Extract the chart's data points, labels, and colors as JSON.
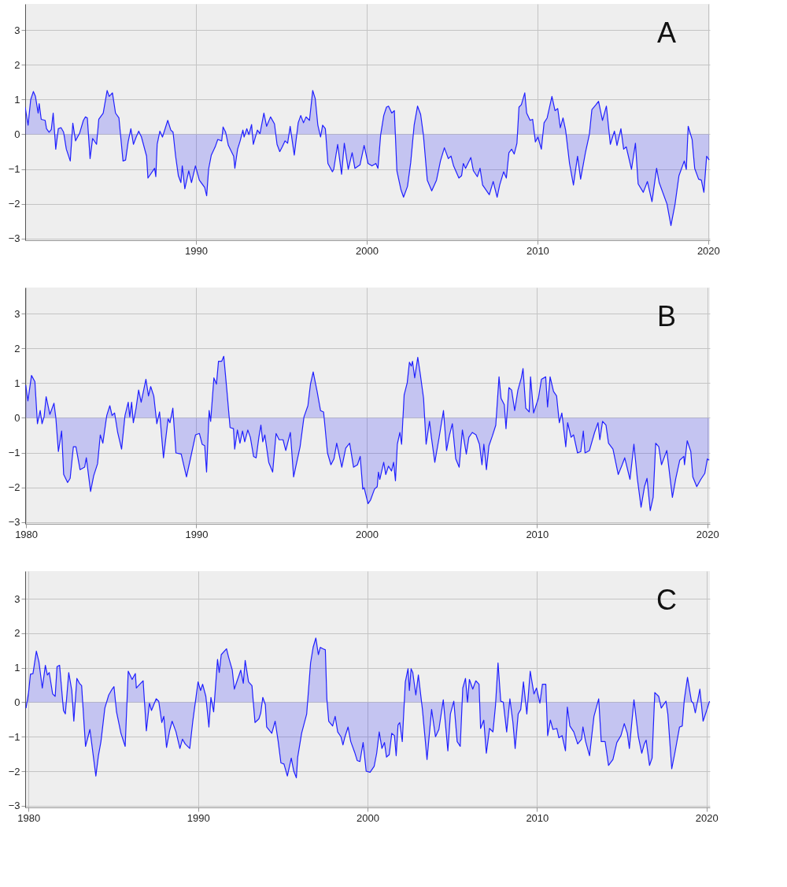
{
  "chart_data": [
    {
      "type": "area",
      "color": "#2020ff",
      "grid": true,
      "annotations": [
        "A"
      ],
      "xlim": [
        1980,
        2020.1
      ],
      "xticks": [
        1990,
        2000,
        2010,
        2020
      ],
      "ylim": [
        -3.05,
        3.75
      ],
      "yticks": [
        -3,
        -2,
        -1,
        0,
        1,
        2,
        3
      ],
      "x": [
        1980.0,
        1980.17,
        1980.32,
        1980.48,
        1980.6,
        1980.76,
        1980.82,
        1980.94,
        1981.17,
        1981.25,
        1981.4,
        1981.53,
        1981.64,
        1981.79,
        1981.94,
        1982.1,
        1982.25,
        1982.41,
        1982.64,
        1982.79,
        1982.95,
        1983.18,
        1983.41,
        1983.53,
        1983.64,
        1983.8,
        1983.95,
        1984.18,
        1984.31,
        1984.57,
        1984.8,
        1984.92,
        1985.11,
        1985.29,
        1985.49,
        1985.73,
        1985.88,
        1986.03,
        1986.19,
        1986.34,
        1986.5,
        1986.65,
        1986.81,
        1987.11,
        1987.19,
        1987.58,
        1987.65,
        1987.73,
        1987.89,
        1988.04,
        1988.35,
        1988.53,
        1988.66,
        1988.81,
        1988.97,
        1989.12,
        1989.2,
        1989.35,
        1989.58,
        1989.74,
        1989.97,
        1990.2,
        1990.51,
        1990.63,
        1990.74,
        1990.9,
        1991.13,
        1991.28,
        1991.51,
        1991.59,
        1991.74,
        1991.9,
        1992.21,
        1992.28,
        1992.44,
        1992.59,
        1992.75,
        1992.82,
        1992.98,
        1993.1,
        1993.26,
        1993.36,
        1993.6,
        1993.75,
        1993.98,
        1994.14,
        1994.37,
        1994.6,
        1994.75,
        1994.91,
        1995.06,
        1995.22,
        1995.37,
        1995.52,
        1995.76,
        1995.99,
        1996.14,
        1996.3,
        1996.45,
        1996.65,
        1996.84,
        1996.99,
        1997.14,
        1997.3,
        1997.42,
        1997.58,
        1997.73,
        1997.99,
        1998.07,
        1998.3,
        1998.53,
        1998.69,
        1998.92,
        1999.15,
        1999.31,
        1999.61,
        1999.85,
        2000.08,
        2000.31,
        2000.54,
        2000.66,
        2000.82,
        2001.0,
        2001.16,
        2001.28,
        2001.47,
        2001.62,
        2001.77,
        2002.01,
        2002.16,
        2002.39,
        2002.58,
        2002.78,
        2002.98,
        2003.16,
        2003.32,
        2003.55,
        2003.81,
        2004.09,
        2004.32,
        2004.55,
        2004.78,
        2004.94,
        2005.09,
        2005.4,
        2005.56,
        2005.66,
        2005.79,
        2006.1,
        2006.25,
        2006.48,
        2006.64,
        2006.79,
        2007.18,
        2007.41,
        2007.64,
        2007.79,
        2008.02,
        2008.18,
        2008.33,
        2008.49,
        2008.64,
        2008.8,
        2008.92,
        2009.06,
        2009.26,
        2009.37,
        2009.57,
        2009.72,
        2009.88,
        2010.03,
        2010.23,
        2010.39,
        2010.57,
        2010.85,
        2011.03,
        2011.19,
        2011.34,
        2011.5,
        2011.65,
        2011.88,
        2012.11,
        2012.35,
        2012.53,
        2012.81,
        2013.04,
        2013.19,
        2013.43,
        2013.58,
        2013.81,
        2014.04,
        2014.27,
        2014.51,
        2014.66,
        2014.89,
        2015.05,
        2015.2,
        2015.51,
        2015.74,
        2015.9,
        2016.2,
        2016.44,
        2016.71,
        2016.98,
        2017.13,
        2017.59,
        2017.82,
        2018.06,
        2018.29,
        2018.6,
        2018.72,
        2018.83,
        2019.06,
        2019.21,
        2019.44,
        2019.6,
        2019.75,
        2019.91,
        2020.06
      ],
      "values": [
        0.78,
        0.26,
        0.99,
        1.23,
        1.09,
        0.61,
        0.88,
        0.43,
        0.4,
        0.16,
        0.06,
        0.14,
        0.61,
        -0.43,
        0.16,
        0.19,
        0.06,
        -0.43,
        -0.77,
        0.32,
        -0.19,
        0.02,
        0.4,
        0.5,
        0.47,
        -0.7,
        -0.12,
        -0.29,
        0.43,
        0.61,
        1.26,
        1.09,
        1.19,
        0.61,
        0.47,
        -0.77,
        -0.74,
        -0.22,
        0.16,
        -0.29,
        -0.08,
        0.09,
        -0.08,
        -0.63,
        -1.26,
        -0.98,
        -1.22,
        -0.29,
        0.09,
        -0.08,
        0.4,
        0.12,
        0.06,
        -0.63,
        -1.19,
        -1.39,
        -0.91,
        -1.57,
        -1.05,
        -1.39,
        -0.91,
        -1.32,
        -1.53,
        -1.77,
        -1.01,
        -0.6,
        -0.36,
        -0.15,
        -0.19,
        0.21,
        0.06,
        -0.32,
        -0.63,
        -0.98,
        -0.43,
        -0.19,
        0.12,
        -0.08,
        0.16,
        -0.01,
        0.28,
        -0.29,
        0.12,
        0.02,
        0.61,
        0.23,
        0.5,
        0.3,
        -0.29,
        -0.5,
        -0.36,
        -0.19,
        -0.26,
        0.23,
        -0.6,
        0.33,
        0.54,
        0.33,
        0.5,
        0.4,
        1.26,
        1.02,
        0.26,
        -0.08,
        0.26,
        0.16,
        -0.84,
        -1.08,
        -1.01,
        -0.29,
        -1.15,
        -0.26,
        -1.01,
        -0.53,
        -0.98,
        -0.88,
        -0.32,
        -0.84,
        -0.91,
        -0.84,
        -0.98,
        -0.01,
        0.54,
        0.78,
        0.81,
        0.61,
        0.68,
        -1.05,
        -1.6,
        -1.81,
        -1.5,
        -0.81,
        0.26,
        0.81,
        0.57,
        -0.01,
        -1.32,
        -1.63,
        -1.32,
        -0.77,
        -0.39,
        -0.7,
        -0.63,
        -0.91,
        -1.26,
        -1.19,
        -0.84,
        -0.98,
        -0.67,
        -1.05,
        -1.22,
        -0.98,
        -1.46,
        -1.74,
        -1.36,
        -1.81,
        -1.46,
        -1.08,
        -1.26,
        -0.53,
        -0.43,
        -0.57,
        -0.26,
        0.78,
        0.85,
        1.19,
        0.61,
        0.4,
        0.43,
        -0.22,
        -0.08,
        -0.43,
        0.33,
        0.47,
        1.09,
        0.68,
        0.74,
        0.19,
        0.47,
        0.12,
        -0.84,
        -1.46,
        -0.63,
        -1.29,
        -0.53,
        -0.01,
        0.71,
        0.85,
        0.95,
        0.4,
        0.81,
        -0.29,
        0.09,
        -0.32,
        0.16,
        -0.43,
        -0.36,
        -1.01,
        -0.26,
        -1.43,
        -1.67,
        -1.36,
        -1.94,
        -0.98,
        -1.39,
        -2.01,
        -2.63,
        -2.01,
        -1.19,
        -0.77,
        -1.01,
        0.23,
        -0.15,
        -0.98,
        -1.29,
        -1.32,
        -1.67,
        -0.63,
        -0.74
      ]
    },
    {
      "type": "area",
      "color": "#2020ff",
      "grid": true,
      "annotations": [
        "B"
      ],
      "xlim": [
        1979.95,
        2020.15
      ],
      "xticks": [
        1980,
        1990,
        2000,
        2010,
        2020
      ],
      "ylim": [
        -3.05,
        3.75
      ],
      "yticks": [
        -3,
        -2,
        -1,
        0,
        1,
        2,
        3
      ],
      "x": [
        1979.98,
        1980.11,
        1980.32,
        1980.52,
        1980.67,
        1980.83,
        1980.94,
        1981.06,
        1981.18,
        1981.4,
        1981.64,
        1981.75,
        1981.9,
        1982.09,
        1982.21,
        1982.44,
        1982.59,
        1982.78,
        1982.93,
        1983.17,
        1983.44,
        1983.54,
        1983.79,
        1983.97,
        1984.2,
        1984.36,
        1984.51,
        1984.74,
        1984.92,
        1985.05,
        1985.2,
        1985.38,
        1985.61,
        1985.81,
        1986.0,
        1986.09,
        1986.2,
        1986.3,
        1986.46,
        1986.61,
        1986.76,
        1987.04,
        1987.19,
        1987.32,
        1987.5,
        1987.68,
        1987.84,
        1988.07,
        1988.34,
        1988.45,
        1988.62,
        1988.8,
        1989.11,
        1989.42,
        1989.65,
        1989.95,
        1990.18,
        1990.34,
        1990.49,
        1990.6,
        1990.75,
        1990.84,
        1991.03,
        1991.18,
        1991.3,
        1991.49,
        1991.61,
        1991.79,
        1991.98,
        1992.18,
        1992.25,
        1992.41,
        1992.56,
        1992.71,
        1992.84,
        1993.02,
        1993.17,
        1993.36,
        1993.51,
        1993.67,
        1993.79,
        1993.9,
        1994.02,
        1994.25,
        1994.48,
        1994.68,
        1994.86,
        1995.09,
        1995.25,
        1995.52,
        1995.71,
        1996.09,
        1996.32,
        1996.55,
        1996.7,
        1996.86,
        1997.09,
        1997.29,
        1997.47,
        1997.7,
        1997.9,
        1998.08,
        1998.24,
        1998.54,
        1998.77,
        1999.0,
        1999.23,
        1999.46,
        1999.62,
        1999.77,
        1999.85,
        2000.08,
        2000.23,
        2000.46,
        2000.62,
        2000.69,
        2000.77,
        2001.0,
        2001.12,
        2001.28,
        2001.46,
        2001.58,
        2001.69,
        2001.8,
        2001.95,
        2002.05,
        2002.2,
        2002.38,
        2002.51,
        2002.62,
        2002.69,
        2002.82,
        2003.0,
        2003.15,
        2003.34,
        2003.49,
        2003.69,
        2003.8,
        2004.0,
        2004.23,
        2004.51,
        2004.69,
        2004.85,
        2005.03,
        2005.23,
        2005.43,
        2005.62,
        2005.85,
        2006.0,
        2006.2,
        2006.42,
        2006.62,
        2006.77,
        2006.88,
        2007.03,
        2007.18,
        2007.38,
        2007.58,
        2007.77,
        2007.89,
        2008.08,
        2008.18,
        2008.35,
        2008.51,
        2008.69,
        2008.88,
        2009.08,
        2009.18,
        2009.34,
        2009.54,
        2009.62,
        2009.8,
        2010.08,
        2010.26,
        2010.51,
        2010.62,
        2010.77,
        2010.97,
        2011.15,
        2011.31,
        2011.46,
        2011.69,
        2011.8,
        2012.0,
        2012.15,
        2012.38,
        2012.57,
        2012.72,
        2012.82,
        2013.08,
        2013.38,
        2013.58,
        2013.69,
        2013.85,
        2014.05,
        2014.2,
        2014.46,
        2014.77,
        2015.0,
        2015.15,
        2015.46,
        2015.69,
        2015.89,
        2016.11,
        2016.31,
        2016.46,
        2016.65,
        2016.82,
        2016.97,
        2017.15,
        2017.31,
        2017.62,
        2017.95,
        2018.15,
        2018.38,
        2018.62,
        2018.66,
        2018.82,
        2019.03,
        2019.15,
        2019.38,
        2019.62,
        2019.85,
        2020.0,
        2020.11
      ],
      "values": [
        0.94,
        0.49,
        1.22,
        1.04,
        -0.17,
        0.21,
        -0.17,
        0.03,
        0.61,
        0.1,
        0.42,
        0,
        -0.97,
        -0.38,
        -1.63,
        -1.86,
        -1.74,
        -0.83,
        -0.83,
        -1.49,
        -1.42,
        -1.15,
        -2.12,
        -1.67,
        -1.32,
        -0.49,
        -0.73,
        0.07,
        0.35,
        0.07,
        0.14,
        -0.42,
        -0.9,
        0.07,
        0.45,
        0.03,
        0.45,
        -0.14,
        0.28,
        0.8,
        0.45,
        1.11,
        0.63,
        0.9,
        0.63,
        -0.17,
        0.17,
        -1.15,
        -0.03,
        -0.14,
        0.28,
        -1.01,
        -1.04,
        -1.7,
        -1.18,
        -0.49,
        -0.45,
        -0.76,
        -0.8,
        -1.56,
        0.21,
        -0.1,
        1.15,
        0.97,
        1.63,
        1.63,
        1.77,
        0.8,
        -0.28,
        -0.31,
        -0.9,
        -0.35,
        -0.73,
        -0.38,
        -0.69,
        -0.35,
        -0.56,
        -1.11,
        -1.15,
        -0.56,
        -0.21,
        -0.69,
        -0.49,
        -1.28,
        -1.56,
        -0.45,
        -0.63,
        -0.63,
        -0.94,
        -0.42,
        -1.7,
        -0.83,
        0.03,
        0.35,
        0.97,
        1.32,
        0.76,
        0.21,
        0.17,
        -1.01,
        -1.35,
        -1.18,
        -0.73,
        -1.42,
        -0.87,
        -0.73,
        -1.42,
        -1.35,
        -1.11,
        -2.05,
        -2.01,
        -2.47,
        -2.36,
        -2.05,
        -1.98,
        -1.56,
        -1.77,
        -1.28,
        -1.63,
        -1.39,
        -1.53,
        -1.28,
        -1.81,
        -0.76,
        -0.42,
        -0.76,
        0.66,
        1.01,
        1.6,
        1.49,
        1.63,
        1.15,
        1.74,
        1.25,
        0.56,
        -0.76,
        -0.1,
        -0.56,
        -1.28,
        -0.63,
        0.21,
        -0.94,
        -0.52,
        -0.17,
        -1.18,
        -1.42,
        -0.35,
        -1.04,
        -0.56,
        -0.42,
        -0.49,
        -0.76,
        -1.35,
        -0.76,
        -1.49,
        -0.8,
        -0.52,
        -0.21,
        1.18,
        0.56,
        0.38,
        -0.31,
        0.87,
        0.8,
        0.21,
        0.8,
        1.15,
        1.42,
        0.28,
        0.17,
        1.18,
        0.14,
        0.56,
        1.11,
        1.18,
        0.31,
        1.18,
        0.76,
        0.63,
        -0.14,
        0.14,
        -0.83,
        -0.14,
        -0.56,
        -0.49,
        -1.01,
        -0.97,
        -0.38,
        -1.01,
        -0.94,
        -0.42,
        -0.14,
        -0.63,
        -0.1,
        -0.21,
        -0.73,
        -0.9,
        -1.63,
        -1.35,
        -1.15,
        -1.77,
        -0.76,
        -1.74,
        -2.57,
        -1.98,
        -1.74,
        -2.67,
        -2.29,
        -0.73,
        -0.83,
        -1.35,
        -0.94,
        -2.29,
        -1.74,
        -1.22,
        -1.11,
        -1.35,
        -0.66,
        -0.97,
        -1.7,
        -1.98,
        -1.77,
        -1.6,
        -1.18,
        -1.22
      ]
    },
    {
      "type": "area",
      "color": "#2020ff",
      "grid": true,
      "annotations": [
        "C"
      ],
      "xlim": [
        1979.8,
        2020.2
      ],
      "xticks": [
        1980,
        1990,
        2000,
        2010,
        2020
      ],
      "ylim": [
        -3.05,
        3.8
      ],
      "yticks": [
        -3,
        -2,
        -1,
        0,
        1,
        2,
        3
      ],
      "x": [
        1979.85,
        1980.0,
        1980.11,
        1980.26,
        1980.46,
        1980.61,
        1980.81,
        1980.99,
        1981.11,
        1981.22,
        1981.42,
        1981.57,
        1981.68,
        1981.83,
        1982.06,
        1982.17,
        1982.37,
        1982.55,
        1982.67,
        1982.85,
        1983.0,
        1983.13,
        1983.36,
        1983.62,
        1983.97,
        1984.12,
        1984.27,
        1984.5,
        1984.73,
        1984.93,
        1985.04,
        1985.19,
        1985.45,
        1985.7,
        1985.88,
        1986.11,
        1986.3,
        1986.36,
        1986.56,
        1986.76,
        1986.95,
        1987.13,
        1987.25,
        1987.53,
        1987.68,
        1987.86,
        1987.98,
        1988.14,
        1988.32,
        1988.47,
        1988.7,
        1988.93,
        1989.08,
        1989.24,
        1989.51,
        1989.69,
        1990.0,
        1990.15,
        1990.27,
        1990.46,
        1990.64,
        1990.76,
        1990.92,
        1991.15,
        1991.25,
        1991.37,
        1991.68,
        1991.8,
        1992.02,
        1992.14,
        1992.52,
        1992.67,
        1992.78,
        1992.98,
        1993.18,
        1993.36,
        1993.59,
        1993.7,
        1993.82,
        1993.97,
        1994.05,
        1994.35,
        1994.55,
        1994.73,
        1994.89,
        1995.07,
        1995.27,
        1995.5,
        1995.65,
        1995.8,
        1995.88,
        1996.11,
        1996.41,
        1996.64,
        1996.79,
        1996.95,
        1997.1,
        1997.21,
        1997.36,
        1997.51,
        1997.6,
        1997.71,
        1997.94,
        1998.09,
        1998.24,
        1998.43,
        1998.55,
        1998.67,
        1998.85,
        1999.01,
        1999.24,
        1999.39,
        1999.55,
        1999.74,
        1999.92,
        2000.15,
        2000.39,
        2000.54,
        2000.69,
        2000.85,
        2001.0,
        2001.12,
        2001.28,
        2001.43,
        2001.59,
        2001.69,
        2001.8,
        2001.9,
        2002.05,
        2002.23,
        2002.39,
        2002.47,
        2002.57,
        2002.67,
        2002.85,
        2003.0,
        2003.24,
        2003.51,
        2003.78,
        2004.01,
        2004.21,
        2004.47,
        2004.74,
        2004.89,
        2005.09,
        2005.29,
        2005.47,
        2005.62,
        2005.78,
        2005.9,
        2006.01,
        2006.21,
        2006.39,
        2006.58,
        2006.67,
        2006.86,
        2007.01,
        2007.2,
        2007.4,
        2007.55,
        2007.7,
        2007.86,
        2008.01,
        2008.21,
        2008.4,
        2008.58,
        2008.71,
        2008.89,
        2009.04,
        2009.2,
        2009.4,
        2009.6,
        2009.82,
        2009.97,
        2010.17,
        2010.32,
        2010.52,
        2010.63,
        2010.79,
        2010.94,
        2011.17,
        2011.29,
        2011.48,
        2011.68,
        2011.79,
        2011.94,
        2012.17,
        2012.4,
        2012.63,
        2012.71,
        2012.87,
        2013.1,
        2013.36,
        2013.64,
        2013.79,
        2014.02,
        2014.22,
        2014.48,
        2014.71,
        2014.95,
        2015.15,
        2015.33,
        2015.45,
        2015.72,
        2015.98,
        2016.18,
        2016.33,
        2016.44,
        2016.64,
        2016.79,
        2016.95,
        2017.18,
        2017.33,
        2017.61,
        2017.72,
        2017.95,
        2018.13,
        2018.41,
        2018.57,
        2018.69,
        2018.88,
        2019.11,
        2019.22,
        2019.34,
        2019.61,
        2019.8,
        2020.03,
        2020.18
      ],
      "values": [
        -0.17,
        0.28,
        0.81,
        0.83,
        1.48,
        1.17,
        0.41,
        1.07,
        0.79,
        0.86,
        0.24,
        0.17,
        1.03,
        1.07,
        -0.24,
        -0.34,
        0.86,
        0.34,
        -0.55,
        0.69,
        0.55,
        0.48,
        -1.28,
        -0.79,
        -2.14,
        -1.55,
        -1.14,
        -0.17,
        0.21,
        0.38,
        0.45,
        -0.28,
        -0.9,
        -1.28,
        0.9,
        0.66,
        0.83,
        0.41,
        0.52,
        0.62,
        -0.83,
        -0.03,
        -0.24,
        0.1,
        0.03,
        -0.59,
        -0.41,
        -1.31,
        -0.83,
        -0.55,
        -0.86,
        -1.34,
        -1.07,
        -1.21,
        -1.34,
        -0.55,
        0.59,
        0.34,
        0.52,
        0.17,
        -0.72,
        0.14,
        -0.28,
        1.24,
        0.86,
        1.38,
        1.55,
        1.31,
        0.93,
        0.38,
        0.93,
        0.55,
        1.21,
        0.59,
        0.48,
        -0.59,
        -0.48,
        -0.31,
        0.14,
        -0.07,
        -0.72,
        -0.9,
        -0.55,
        -1.14,
        -1.76,
        -1.79,
        -2.14,
        -1.62,
        -2.0,
        -2.19,
        -1.59,
        -0.9,
        -0.34,
        1.14,
        1.59,
        1.86,
        1.38,
        1.59,
        1.55,
        1.52,
        0.1,
        -0.55,
        -0.69,
        -0.41,
        -0.86,
        -1.0,
        -1.24,
        -1.0,
        -0.72,
        -1.14,
        -1.45,
        -1.69,
        -1.72,
        -1.17,
        -2.0,
        -2.03,
        -1.86,
        -1.48,
        -0.86,
        -1.34,
        -1.17,
        -1.59,
        -1.52,
        -0.9,
        -0.97,
        -1.55,
        -0.66,
        -0.59,
        -1.14,
        0.59,
        0.97,
        0.34,
        0.97,
        0.86,
        0.21,
        0.79,
        -0.21,
        -1.66,
        -0.21,
        -1.0,
        -0.79,
        0.07,
        -1.41,
        -0.34,
        0.03,
        -1.14,
        -1.28,
        0.41,
        0.69,
        0,
        0.66,
        0.38,
        0.62,
        0.52,
        -0.76,
        -0.52,
        -1.48,
        -0.76,
        -0.86,
        -0.1,
        1.14,
        0.03,
        0,
        -0.86,
        0.1,
        -0.59,
        -1.34,
        -0.34,
        -0.21,
        0.59,
        -0.34,
        0.9,
        0.24,
        0.41,
        -0.03,
        0.52,
        0.52,
        -0.97,
        -0.52,
        -0.79,
        -0.76,
        -1.03,
        -0.97,
        -1.41,
        -0.14,
        -0.69,
        -0.86,
        -1.21,
        -1.07,
        -0.72,
        -1.14,
        -1.55,
        -0.41,
        0.1,
        -1.14,
        -1.14,
        -1.83,
        -1.66,
        -1.17,
        -0.97,
        -0.62,
        -0.9,
        -1.34,
        0.07,
        -1.0,
        -1.48,
        -1.21,
        -1.1,
        -1.83,
        -1.62,
        0.28,
        0.17,
        -0.17,
        0.03,
        -0.34,
        -1.93,
        -1.48,
        -0.72,
        -0.69,
        0.07,
        0.72,
        0.03,
        -0.03,
        -0.31,
        0.38,
        -0.55,
        -0.21,
        0.03
      ]
    }
  ]
}
